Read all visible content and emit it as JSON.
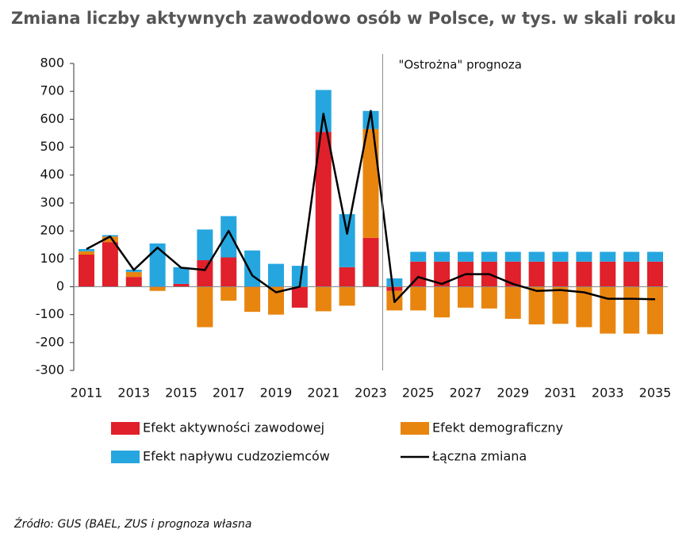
{
  "chart_data": {
    "type": "bar",
    "title": "Zmiana liczby aktywnych zawodowo osób w Polsce, w tys. w skali roku",
    "annotation": "\"Ostrożna\" prognoza",
    "source": "Źródło: GUS (BAEL, ZUS i prognoza własna",
    "stacked": true,
    "categories": [
      "2011",
      null,
      "2013",
      null,
      "2015",
      null,
      "2017",
      null,
      "2019",
      null,
      "2021",
      null,
      "2023",
      null,
      "2025",
      null,
      "2027",
      null,
      "2029",
      null,
      "2031",
      null,
      "2033",
      null,
      "2035"
    ],
    "ylim": [
      -300,
      800
    ],
    "yticks": [
      -300,
      -200,
      -100,
      0,
      100,
      200,
      300,
      400,
      500,
      600,
      700,
      800
    ],
    "series": [
      {
        "name": "Efekt aktywności zawodowej",
        "color": "#e0202a",
        "values": [
          115,
          160,
          35,
          0,
          10,
          95,
          105,
          0,
          0,
          -75,
          555,
          70,
          175,
          -15,
          90,
          90,
          90,
          90,
          90,
          90,
          90,
          90,
          90,
          90,
          90
        ]
      },
      {
        "name": "Efekt demograficzny",
        "color": "#e8850f",
        "values": [
          12,
          20,
          18,
          -15,
          0,
          -145,
          -50,
          -90,
          -100,
          0,
          -88,
          -68,
          390,
          -70,
          -85,
          -110,
          -75,
          -78,
          -115,
          -135,
          -133,
          -145,
          -168,
          -168,
          -170
        ]
      },
      {
        "name": "Efekt napływu cudzoziemców",
        "color": "#26a6df",
        "values": [
          8,
          5,
          8,
          155,
          60,
          110,
          148,
          130,
          82,
          75,
          150,
          190,
          65,
          30,
          35,
          35,
          35,
          35,
          35,
          35,
          35,
          35,
          35,
          35,
          35
        ]
      },
      {
        "name": "Łączna zmiana",
        "type": "line",
        "color": "#000000",
        "values": [
          135,
          180,
          60,
          140,
          68,
          60,
          200,
          40,
          -20,
          0,
          620,
          190,
          630,
          -55,
          35,
          10,
          45,
          45,
          10,
          -15,
          -12,
          -20,
          -43,
          -43,
          -45
        ]
      }
    ]
  }
}
